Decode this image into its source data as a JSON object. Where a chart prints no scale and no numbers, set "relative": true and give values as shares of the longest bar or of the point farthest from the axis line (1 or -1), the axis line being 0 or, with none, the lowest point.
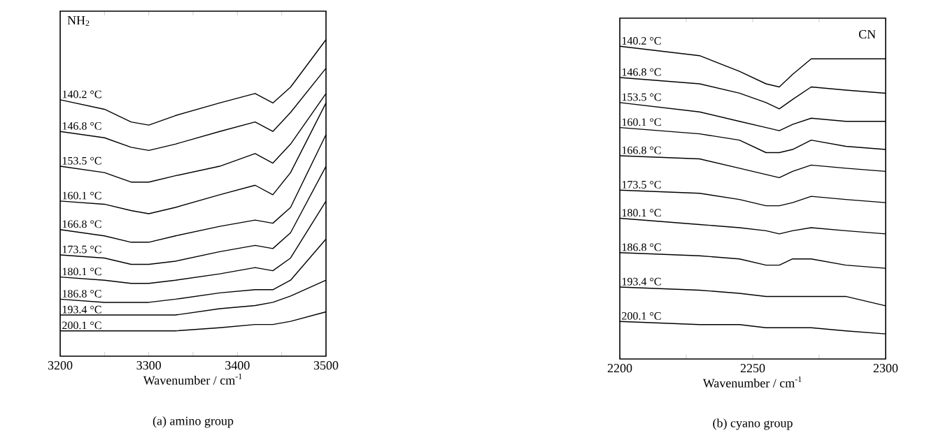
{
  "chart_data": [
    {
      "type": "line",
      "title": "(a) amino group",
      "xlabel": "Wavenumber / cm$^{-1}$",
      "annotations": [
        "NH$_{2}$"
      ],
      "relative": true,
      "legend": false,
      "grid": false,
      "marker": "none",
      "line_style": "solid",
      "x": [
        3200,
        3250,
        3280,
        3300,
        3330,
        3380,
        3420,
        3440,
        3460,
        3500
      ],
      "xlim": [
        3200,
        3500
      ],
      "xticks": [
        3200,
        {
          "value": 3250,
          "label": null
        },
        3300,
        {
          "value": 3350,
          "label": null
        },
        3400,
        {
          "value": 3450,
          "label": null
        },
        3500
      ],
      "series": [
        {
          "name": "140.2 °C",
          "color": "#000000",
          "values": [
            0.81,
            0.78,
            0.74,
            0.73,
            0.76,
            0.8,
            0.83,
            0.8,
            0.85,
            1.0
          ]
        },
        {
          "name": "146.8 °C",
          "color": "#000000",
          "values": [
            0.71,
            0.69,
            0.66,
            0.65,
            0.67,
            0.71,
            0.74,
            0.71,
            0.77,
            0.91
          ]
        },
        {
          "name": "153.5 °C",
          "color": "#000000",
          "values": [
            0.6,
            0.58,
            0.55,
            0.55,
            0.57,
            0.6,
            0.64,
            0.61,
            0.67,
            0.83
          ]
        },
        {
          "name": "160.1 °C",
          "color": "#000000",
          "values": [
            0.49,
            0.48,
            0.46,
            0.45,
            0.47,
            0.51,
            0.54,
            0.51,
            0.58,
            0.8
          ]
        },
        {
          "name": "166.8 °C",
          "color": "#000000",
          "values": [
            0.4,
            0.38,
            0.36,
            0.36,
            0.38,
            0.41,
            0.43,
            0.42,
            0.47,
            0.7
          ]
        },
        {
          "name": "173.5 °C",
          "color": "#000000",
          "values": [
            0.32,
            0.31,
            0.29,
            0.29,
            0.3,
            0.33,
            0.35,
            0.34,
            0.39,
            0.6
          ]
        },
        {
          "name": "180.1 °C",
          "color": "#000000",
          "values": [
            0.25,
            0.24,
            0.23,
            0.23,
            0.24,
            0.26,
            0.28,
            0.27,
            0.31,
            0.49
          ]
        },
        {
          "name": "186.8 °C",
          "color": "#000000",
          "values": [
            0.18,
            0.17,
            0.17,
            0.17,
            0.18,
            0.2,
            0.21,
            0.21,
            0.24,
            0.37
          ]
        },
        {
          "name": "193.4 °C",
          "color": "#000000",
          "values": [
            0.13,
            0.13,
            0.13,
            0.13,
            0.13,
            0.15,
            0.16,
            0.17,
            0.19,
            0.24
          ]
        },
        {
          "name": "200.1 °C",
          "color": "#000000",
          "values": [
            0.08,
            0.08,
            0.08,
            0.08,
            0.08,
            0.09,
            0.1,
            0.1,
            0.11,
            0.14
          ]
        }
      ]
    },
    {
      "type": "line",
      "title": "(b) cyano group",
      "xlabel": "Wavenumber / cm$^{-1}$",
      "annotations": [
        "CN"
      ],
      "relative": true,
      "legend": false,
      "grid": false,
      "marker": "none",
      "line_style": "solid",
      "x": [
        2200,
        2230,
        2245,
        2255,
        2260,
        2265,
        2272,
        2285,
        2300
      ],
      "xlim": [
        2200,
        2300
      ],
      "xticks": [
        2200,
        {
          "value": 2225,
          "label": null
        },
        2250,
        {
          "value": 2275,
          "label": null
        },
        2300
      ],
      "series": [
        {
          "name": "140.2 °C",
          "color": "#000000",
          "values": [
            1.0,
            0.97,
            0.92,
            0.88,
            0.87,
            0.91,
            0.96,
            0.96,
            0.96
          ]
        },
        {
          "name": "146.8 °C",
          "color": "#000000",
          "values": [
            0.9,
            0.88,
            0.85,
            0.82,
            0.8,
            0.83,
            0.87,
            0.86,
            0.85
          ]
        },
        {
          "name": "153.5 °C",
          "color": "#000000",
          "values": [
            0.82,
            0.79,
            0.76,
            0.74,
            0.73,
            0.75,
            0.77,
            0.76,
            0.76
          ]
        },
        {
          "name": "160.1 °C",
          "color": "#000000",
          "values": [
            0.74,
            0.72,
            0.7,
            0.66,
            0.66,
            0.67,
            0.7,
            0.68,
            0.67
          ]
        },
        {
          "name": "166.8 °C",
          "color": "#000000",
          "values": [
            0.65,
            0.64,
            0.61,
            0.59,
            0.58,
            0.6,
            0.62,
            0.61,
            0.6
          ]
        },
        {
          "name": "173.5 °C",
          "color": "#000000",
          "values": [
            0.54,
            0.53,
            0.51,
            0.49,
            0.49,
            0.5,
            0.52,
            0.51,
            0.5
          ]
        },
        {
          "name": "180.1 °C",
          "color": "#000000",
          "values": [
            0.45,
            0.43,
            0.42,
            0.41,
            0.4,
            0.41,
            0.42,
            0.41,
            0.4
          ]
        },
        {
          "name": "186.8 °C",
          "color": "#000000",
          "values": [
            0.34,
            0.33,
            0.32,
            0.3,
            0.3,
            0.32,
            0.32,
            0.3,
            0.29
          ]
        },
        {
          "name": "193.4 °C",
          "color": "#000000",
          "values": [
            0.23,
            0.22,
            0.21,
            0.2,
            0.2,
            0.2,
            0.2,
            0.2,
            0.17
          ]
        },
        {
          "name": "200.1 °C",
          "color": "#000000",
          "values": [
            0.12,
            0.11,
            0.11,
            0.1,
            0.1,
            0.1,
            0.1,
            0.09,
            0.08
          ]
        }
      ]
    }
  ]
}
